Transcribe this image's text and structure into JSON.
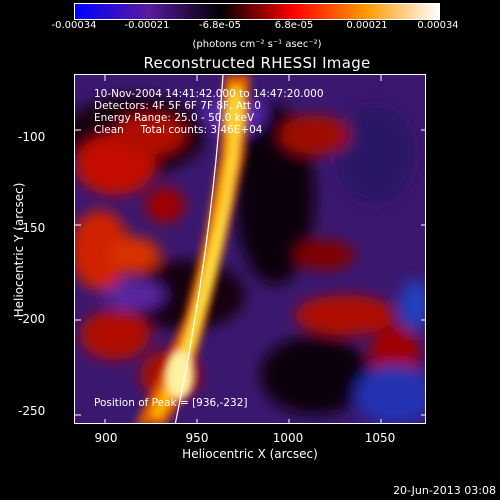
{
  "colorbar": {
    "ticks": [
      "-0.00034",
      "-0.00021",
      "-6.8e-05",
      "6.8e-05",
      "0.00021",
      "0.00034"
    ],
    "unit": "(photons cm⁻² s⁻¹ asec⁻²)",
    "colors": [
      "#0000ff",
      "#5a1aa0",
      "#000000",
      "#ff0000",
      "#ff9900",
      "#ffffff"
    ]
  },
  "title": "Reconstructed RHESSI Image",
  "info": {
    "line1": "10-Nov-2004 14:41:42.000 to 14:47:20.000",
    "line2": "Detectors: 4F 5F 6F 7F 8F, Att 0",
    "line3": "Energy Range: 25.0 - 50.0 keV",
    "line4": "Clean     Total counts: 3.46E+04",
    "peak": "Position of Peak = [936,-232]"
  },
  "axes": {
    "xlabel": "Heliocentric X (arcsec)",
    "ylabel": "Heliocentric Y (arcsec)",
    "xticks": [
      "900",
      "950",
      "1000",
      "1050"
    ],
    "yticks": [
      "-100",
      "-150",
      "-200",
      "-250"
    ],
    "xrange": [
      884,
      1075
    ],
    "yrange": [
      -257,
      -72
    ]
  },
  "footer": "20-Jun-2013 03:08"
}
